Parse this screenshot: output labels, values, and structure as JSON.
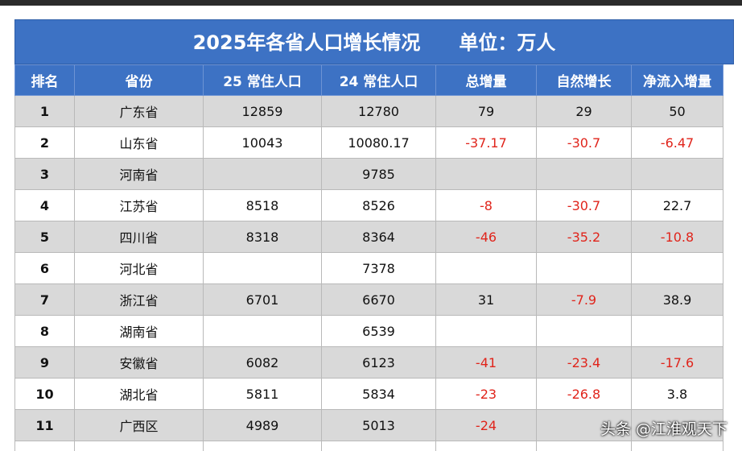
{
  "title": "2025年各省人口增长情况",
  "unit": "单位：万人",
  "headers": [
    "排名",
    "省份",
    "25 常住人口",
    "24 常住人口",
    "总增量",
    "自然增长",
    "净流入增量"
  ],
  "rows": [
    {
      "rank": "1",
      "province": "广东省",
      "pop25": "12859",
      "pop24": "12780",
      "total": "79",
      "natural": "29",
      "net": "50",
      "shade": true
    },
    {
      "rank": "2",
      "province": "山东省",
      "pop25": "10043",
      "pop24": "10080.17",
      "total": "-37.17",
      "natural": "-30.7",
      "net": "-6.47",
      "shade": false
    },
    {
      "rank": "3",
      "province": "河南省",
      "pop25": "",
      "pop24": "9785",
      "total": "",
      "natural": "",
      "net": "",
      "shade": true
    },
    {
      "rank": "4",
      "province": "江苏省",
      "pop25": "8518",
      "pop24": "8526",
      "total": "-8",
      "natural": "-30.7",
      "net": "22.7",
      "shade": false
    },
    {
      "rank": "5",
      "province": "四川省",
      "pop25": "8318",
      "pop24": "8364",
      "total": "-46",
      "natural": "-35.2",
      "net": "-10.8",
      "shade": true
    },
    {
      "rank": "6",
      "province": "河北省",
      "pop25": "",
      "pop24": "7378",
      "total": "",
      "natural": "",
      "net": "",
      "shade": false
    },
    {
      "rank": "7",
      "province": "浙江省",
      "pop25": "6701",
      "pop24": "6670",
      "total": "31",
      "natural": "-7.9",
      "net": "38.9",
      "shade": true
    },
    {
      "rank": "8",
      "province": "湖南省",
      "pop25": "",
      "pop24": "6539",
      "total": "",
      "natural": "",
      "net": "",
      "shade": false
    },
    {
      "rank": "9",
      "province": "安徽省",
      "pop25": "6082",
      "pop24": "6123",
      "total": "-41",
      "natural": "-23.4",
      "net": "-17.6",
      "shade": true
    },
    {
      "rank": "10",
      "province": "湖北省",
      "pop25": "5811",
      "pop24": "5834",
      "total": "-23",
      "natural": "-26.8",
      "net": "3.8",
      "shade": false
    },
    {
      "rank": "11",
      "province": "广西区",
      "pop25": "4989",
      "pop24": "5013",
      "total": "-24",
      "natural": "",
      "net": "",
      "shade": true
    }
  ],
  "watermark": "头条 @江淮观天下",
  "colors": {
    "header_bg": "#3d72c4",
    "negative": "#e0241b",
    "shade": "#d9d9d9"
  }
}
